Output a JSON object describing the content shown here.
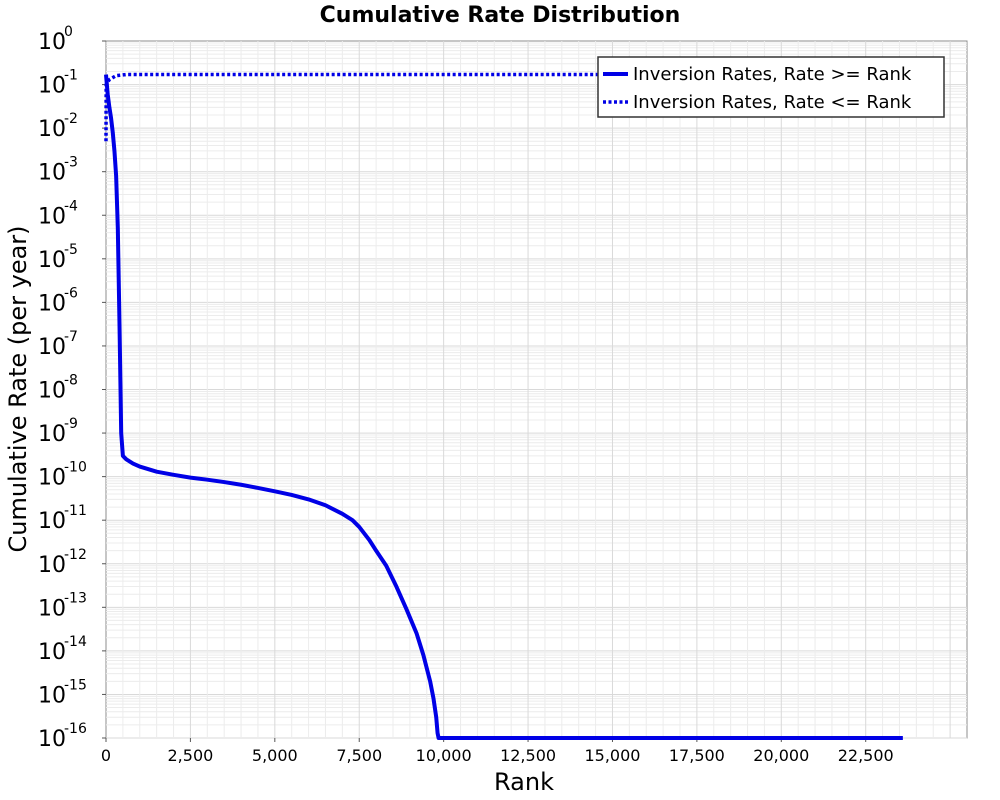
{
  "chart_data": {
    "type": "line",
    "title": "Cumulative Rate Distribution",
    "xlabel": "Rank",
    "ylabel": "Cumulative Rate (per year)",
    "xlim": [
      0,
      25500
    ],
    "ylim": [
      1e-16,
      1
    ],
    "yscale": "log",
    "grid": true,
    "legend_position": "top-right",
    "x_ticks": [
      {
        "value": 0,
        "label": "0"
      },
      {
        "value": 2500,
        "label": "2,500"
      },
      {
        "value": 5000,
        "label": "5,000"
      },
      {
        "value": 7500,
        "label": "7,500"
      },
      {
        "value": 10000,
        "label": "10,000"
      },
      {
        "value": 12500,
        "label": "12,500"
      },
      {
        "value": 15000,
        "label": "15,000"
      },
      {
        "value": 17500,
        "label": "17,500"
      },
      {
        "value": 20000,
        "label": "20,000"
      },
      {
        "value": 22500,
        "label": "22,500"
      }
    ],
    "y_ticks": [
      {
        "exp": 0,
        "base": "10",
        "sup": "0"
      },
      {
        "exp": -1,
        "base": "10",
        "sup": "-1"
      },
      {
        "exp": -2,
        "base": "10",
        "sup": "-2"
      },
      {
        "exp": -3,
        "base": "10",
        "sup": "-3"
      },
      {
        "exp": -4,
        "base": "10",
        "sup": "-4"
      },
      {
        "exp": -5,
        "base": "10",
        "sup": "-5"
      },
      {
        "exp": -6,
        "base": "10",
        "sup": "-6"
      },
      {
        "exp": -7,
        "base": "10",
        "sup": "-7"
      },
      {
        "exp": -8,
        "base": "10",
        "sup": "-8"
      },
      {
        "exp": -9,
        "base": "10",
        "sup": "-9"
      },
      {
        "exp": -10,
        "base": "10",
        "sup": "-10"
      },
      {
        "exp": -11,
        "base": "10",
        "sup": "-11"
      },
      {
        "exp": -12,
        "base": "10",
        "sup": "-12"
      },
      {
        "exp": -13,
        "base": "10",
        "sup": "-13"
      },
      {
        "exp": -14,
        "base": "10",
        "sup": "-14"
      },
      {
        "exp": -15,
        "base": "10",
        "sup": "-15"
      },
      {
        "exp": -16,
        "base": "10",
        "sup": "-16"
      }
    ],
    "series": [
      {
        "name": "Inversion Rates, Rate >= Rank",
        "color": "#0000e6",
        "style": "solid",
        "points": [
          [
            0,
            0.17
          ],
          [
            50,
            0.06
          ],
          [
            100,
            0.03
          ],
          [
            150,
            0.017
          ],
          [
            200,
            0.008
          ],
          [
            250,
            0.003
          ],
          [
            300,
            0.0008
          ],
          [
            350,
            5e-05
          ],
          [
            400,
            3e-07
          ],
          [
            430,
            1e-08
          ],
          [
            450,
            1e-09
          ],
          [
            500,
            3e-10
          ],
          [
            600,
            2.5e-10
          ],
          [
            800,
            2e-10
          ],
          [
            1000,
            1.7e-10
          ],
          [
            1500,
            1.3e-10
          ],
          [
            2000,
            1.1e-10
          ],
          [
            2500,
            9.5e-11
          ],
          [
            3000,
            8.5e-11
          ],
          [
            3500,
            7.5e-11
          ],
          [
            4000,
            6.5e-11
          ],
          [
            4500,
            5.5e-11
          ],
          [
            5000,
            4.6e-11
          ],
          [
            5500,
            3.8e-11
          ],
          [
            6000,
            3e-11
          ],
          [
            6500,
            2.2e-11
          ],
          [
            7000,
            1.4e-11
          ],
          [
            7300,
            1e-11
          ],
          [
            7500,
            7e-12
          ],
          [
            7800,
            3.5e-12
          ],
          [
            8000,
            2e-12
          ],
          [
            8300,
            9e-13
          ],
          [
            8600,
            3e-13
          ],
          [
            8900,
            9e-14
          ],
          [
            9200,
            2.5e-14
          ],
          [
            9400,
            8e-15
          ],
          [
            9600,
            2e-15
          ],
          [
            9700,
            8e-16
          ],
          [
            9780,
            3e-16
          ],
          [
            9820,
            1.3e-16
          ],
          [
            9850,
            1e-16
          ],
          [
            23600,
            1e-16
          ]
        ]
      },
      {
        "name": "Inversion Rates, Rate <= Rank",
        "color": "#0000e6",
        "style": "dotted",
        "points": [
          [
            0,
            0.005
          ],
          [
            5,
            0.1
          ],
          [
            100,
            0.13
          ],
          [
            300,
            0.16
          ],
          [
            600,
            0.17
          ],
          [
            23600,
            0.17
          ]
        ]
      }
    ]
  }
}
